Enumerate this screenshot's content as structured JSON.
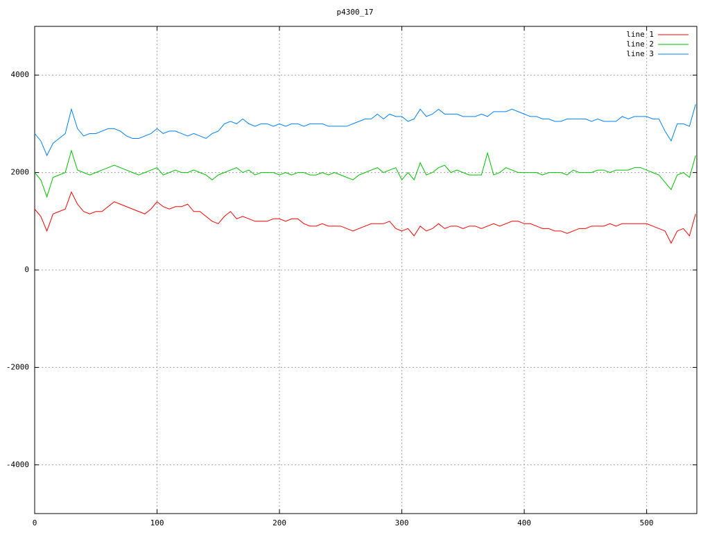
{
  "chart_data": {
    "type": "line",
    "title": "p4300_17",
    "x": [
      0,
      5,
      10,
      15,
      20,
      25,
      30,
      35,
      40,
      45,
      50,
      55,
      60,
      65,
      70,
      75,
      80,
      85,
      90,
      95,
      100,
      105,
      110,
      115,
      120,
      125,
      130,
      135,
      140,
      145,
      150,
      155,
      160,
      165,
      170,
      175,
      180,
      185,
      190,
      195,
      200,
      205,
      210,
      215,
      220,
      225,
      230,
      235,
      240,
      245,
      250,
      255,
      260,
      265,
      270,
      275,
      280,
      285,
      290,
      295,
      300,
      305,
      310,
      315,
      320,
      325,
      330,
      335,
      340,
      345,
      350,
      355,
      360,
      365,
      370,
      375,
      380,
      385,
      390,
      395,
      400,
      405,
      410,
      415,
      420,
      425,
      430,
      435,
      440,
      445,
      450,
      455,
      460,
      465,
      470,
      475,
      480,
      485,
      490,
      495,
      500,
      505,
      510,
      515,
      520,
      525,
      530,
      535,
      540
    ],
    "series": [
      {
        "name": "line 1",
        "color": "#ff0000",
        "values": [
          1250,
          1100,
          800,
          1150,
          1200,
          1250,
          1600,
          1350,
          1200,
          1150,
          1200,
          1200,
          1300,
          1400,
          1350,
          1300,
          1250,
          1200,
          1150,
          1250,
          1400,
          1300,
          1250,
          1300,
          1300,
          1350,
          1200,
          1200,
          1100,
          1000,
          950,
          1100,
          1200,
          1050,
          1100,
          1050,
          1000,
          1000,
          1000,
          1050,
          1050,
          1000,
          1050,
          1050,
          950,
          900,
          900,
          950,
          900,
          900,
          900,
          850,
          800,
          850,
          900,
          950,
          950,
          950,
          1000,
          850,
          800,
          850,
          700,
          900,
          800,
          850,
          950,
          850,
          900,
          900,
          850,
          900,
          900,
          850,
          900,
          950,
          900,
          950,
          1000,
          1000,
          950,
          950,
          900,
          850,
          850,
          800,
          800,
          750,
          800,
          850,
          850,
          900,
          900,
          900,
          950,
          900,
          950,
          950,
          950,
          950,
          950,
          900,
          850,
          800,
          550,
          800,
          850,
          700,
          1150
        ]
      },
      {
        "name": "line 2",
        "color": "#00c000",
        "values": [
          2000,
          1850,
          1500,
          1900,
          1950,
          2000,
          2450,
          2050,
          2000,
          1950,
          2000,
          2050,
          2100,
          2150,
          2100,
          2050,
          2000,
          1950,
          2000,
          2050,
          2100,
          1950,
          2000,
          2050,
          2000,
          2000,
          2050,
          2000,
          1950,
          1850,
          1950,
          2000,
          2050,
          2100,
          2000,
          2050,
          1950,
          2000,
          2000,
          2000,
          1950,
          2000,
          1950,
          2000,
          2000,
          1950,
          1950,
          2000,
          1950,
          2000,
          1950,
          1900,
          1850,
          1950,
          2000,
          2050,
          2100,
          2000,
          2050,
          2100,
          1850,
          2000,
          1850,
          2200,
          1950,
          2000,
          2100,
          2150,
          2000,
          2050,
          2000,
          1950,
          1950,
          1950,
          2400,
          1950,
          2000,
          2100,
          2050,
          2000,
          2000,
          2000,
          2000,
          1950,
          2000,
          2000,
          2000,
          1950,
          2050,
          2000,
          2000,
          2000,
          2050,
          2050,
          2000,
          2050,
          2050,
          2050,
          2100,
          2100,
          2050,
          2000,
          1950,
          1800,
          1650,
          1950,
          2000,
          1900,
          2350
        ]
      },
      {
        "name": "line 3",
        "color": "#0080ff",
        "values": [
          2800,
          2650,
          2350,
          2600,
          2700,
          2800,
          3300,
          2900,
          2750,
          2800,
          2800,
          2850,
          2900,
          2900,
          2850,
          2750,
          2700,
          2700,
          2750,
          2800,
          2900,
          2800,
          2850,
          2850,
          2800,
          2750,
          2800,
          2750,
          2700,
          2800,
          2850,
          3000,
          3050,
          3000,
          3100,
          3000,
          2950,
          3000,
          3000,
          2950,
          3000,
          2950,
          3000,
          3000,
          2950,
          3000,
          3000,
          3000,
          2950,
          2950,
          2950,
          2950,
          3000,
          3050,
          3100,
          3100,
          3200,
          3100,
          3200,
          3150,
          3150,
          3050,
          3100,
          3300,
          3150,
          3200,
          3300,
          3200,
          3200,
          3200,
          3150,
          3150,
          3150,
          3200,
          3150,
          3250,
          3250,
          3250,
          3300,
          3250,
          3200,
          3150,
          3150,
          3100,
          3100,
          3050,
          3050,
          3100,
          3100,
          3100,
          3100,
          3050,
          3100,
          3050,
          3050,
          3050,
          3150,
          3100,
          3150,
          3150,
          3150,
          3100,
          3100,
          2850,
          2650,
          3000,
          3000,
          2950,
          3400
        ]
      }
    ],
    "xlim": [
      0,
      541
    ],
    "xticks": [
      0,
      100,
      200,
      300,
      400,
      500
    ],
    "ylim": [
      -5000,
      5000
    ],
    "yticks": [
      -4000,
      -2000,
      0,
      2000,
      4000
    ],
    "grid": true,
    "legend": "top-right"
  }
}
